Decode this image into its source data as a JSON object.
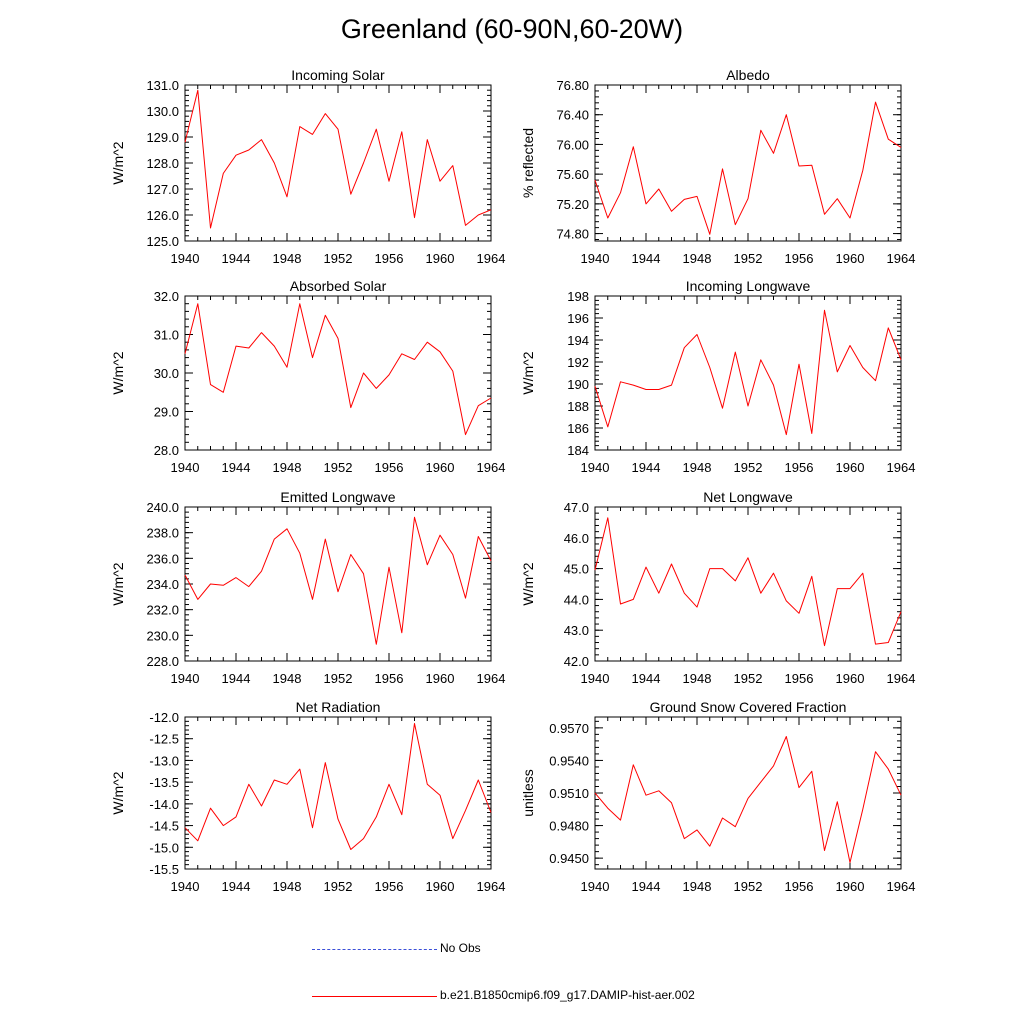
{
  "title": "Greenland (60-90N,60-20W)",
  "colors": {
    "model": "#ff0000",
    "obs": "#3b4fd8",
    "axis": "#000000"
  },
  "legend": {
    "obs_label": "No Obs",
    "model_label": "b.e21.B1850cmip6.f09_g17.DAMIP-hist-aer.002"
  },
  "chart_data": [
    {
      "type": "line",
      "title": "Incoming Solar",
      "xlabel": "",
      "ylabel": "W/m^2",
      "xlim": [
        1940,
        1964
      ],
      "ylim": [
        125.0,
        131.0
      ],
      "xticks": [
        "1940",
        "1944",
        "1948",
        "1952",
        "1956",
        "1960",
        "1964"
      ],
      "yticks": [
        "125.0",
        "126.0",
        "127.0",
        "128.0",
        "129.0",
        "130.0",
        "131.0"
      ],
      "x": [
        1940,
        1941,
        1942,
        1943,
        1944,
        1945,
        1946,
        1947,
        1948,
        1949,
        1950,
        1951,
        1952,
        1953,
        1954,
        1955,
        1956,
        1957,
        1958,
        1959,
        1960,
        1961,
        1962,
        1963,
        1964
      ],
      "series": [
        {
          "name": "b.e21.B1850cmip6.f09_g17.DAMIP-hist-aer.002",
          "values": [
            128.8,
            130.8,
            125.5,
            127.6,
            128.3,
            128.5,
            128.9,
            128.0,
            126.7,
            129.4,
            129.1,
            129.9,
            129.3,
            126.8,
            128.0,
            129.3,
            127.3,
            129.2,
            125.9,
            128.9,
            127.3,
            127.9,
            125.6,
            126.0,
            126.2
          ]
        }
      ]
    },
    {
      "type": "line",
      "title": "Albedo",
      "xlabel": "",
      "ylabel": "% reflected",
      "xlim": [
        1940,
        1964
      ],
      "ylim": [
        74.7,
        76.8
      ],
      "xticks": [
        "1940",
        "1944",
        "1948",
        "1952",
        "1956",
        "1960",
        "1964"
      ],
      "yticks": [
        "74.80",
        "75.20",
        "75.60",
        "76.00",
        "76.40",
        "76.80"
      ],
      "x": [
        1940,
        1941,
        1942,
        1943,
        1944,
        1945,
        1946,
        1947,
        1948,
        1949,
        1950,
        1951,
        1952,
        1953,
        1954,
        1955,
        1956,
        1957,
        1958,
        1959,
        1960,
        1961,
        1962,
        1963,
        1964
      ],
      "series": [
        {
          "name": "b.e21.B1850cmip6.f09_g17.DAMIP-hist-aer.002",
          "values": [
            75.52,
            75.01,
            75.35,
            75.97,
            75.2,
            75.4,
            75.1,
            75.26,
            75.3,
            74.79,
            75.67,
            74.92,
            75.27,
            76.19,
            75.88,
            76.4,
            75.71,
            75.72,
            75.06,
            75.27,
            75.01,
            75.65,
            76.57,
            76.07,
            75.96
          ]
        }
      ]
    },
    {
      "type": "line",
      "title": "Absorbed Solar",
      "xlabel": "",
      "ylabel": "W/m^2",
      "xlim": [
        1940,
        1964
      ],
      "ylim": [
        28.0,
        32.0
      ],
      "xticks": [
        "1940",
        "1944",
        "1948",
        "1952",
        "1956",
        "1960",
        "1964"
      ],
      "yticks": [
        "28.0",
        "29.0",
        "30.0",
        "31.0",
        "32.0"
      ],
      "x": [
        1940,
        1941,
        1942,
        1943,
        1944,
        1945,
        1946,
        1947,
        1948,
        1949,
        1950,
        1951,
        1952,
        1953,
        1954,
        1955,
        1956,
        1957,
        1958,
        1959,
        1960,
        1961,
        1962,
        1963,
        1964
      ],
      "series": [
        {
          "name": "b.e21.B1850cmip6.f09_g17.DAMIP-hist-aer.002",
          "values": [
            30.5,
            31.8,
            29.7,
            29.5,
            30.7,
            30.65,
            31.05,
            30.7,
            30.15,
            31.8,
            30.4,
            31.5,
            30.9,
            29.1,
            30.0,
            29.6,
            29.95,
            30.5,
            30.35,
            30.8,
            30.55,
            30.05,
            28.4,
            29.15,
            29.35
          ]
        }
      ]
    },
    {
      "type": "line",
      "title": "Incoming Longwave",
      "xlabel": "",
      "ylabel": "W/m^2",
      "xlim": [
        1940,
        1964
      ],
      "ylim": [
        184,
        198
      ],
      "xticks": [
        "1940",
        "1944",
        "1948",
        "1952",
        "1956",
        "1960",
        "1964"
      ],
      "yticks": [
        "184",
        "186",
        "188",
        "190",
        "192",
        "194",
        "196",
        "198"
      ],
      "x": [
        1940,
        1941,
        1942,
        1943,
        1944,
        1945,
        1946,
        1947,
        1948,
        1949,
        1950,
        1951,
        1952,
        1953,
        1954,
        1955,
        1956,
        1957,
        1958,
        1959,
        1960,
        1961,
        1962,
        1963,
        1964
      ],
      "series": [
        {
          "name": "b.e21.B1850cmip6.f09_g17.DAMIP-hist-aer.002",
          "values": [
            189.8,
            186.1,
            190.2,
            189.9,
            189.5,
            189.5,
            189.9,
            193.3,
            194.5,
            191.5,
            187.8,
            192.9,
            188.0,
            192.2,
            189.9,
            185.4,
            191.8,
            185.5,
            196.7,
            191.1,
            193.5,
            191.5,
            190.3,
            195.1,
            192.2
          ]
        }
      ]
    },
    {
      "type": "line",
      "title": "Emitted Longwave",
      "xlabel": "",
      "ylabel": "W/m^2",
      "xlim": [
        1940,
        1964
      ],
      "ylim": [
        228.0,
        240.0
      ],
      "xticks": [
        "1940",
        "1944",
        "1948",
        "1952",
        "1956",
        "1960",
        "1964"
      ],
      "yticks": [
        "228.0",
        "230.0",
        "232.0",
        "234.0",
        "236.0",
        "238.0",
        "240.0"
      ],
      "x": [
        1940,
        1941,
        1942,
        1943,
        1944,
        1945,
        1946,
        1947,
        1948,
        1949,
        1950,
        1951,
        1952,
        1953,
        1954,
        1955,
        1956,
        1957,
        1958,
        1959,
        1960,
        1961,
        1962,
        1963,
        1964
      ],
      "series": [
        {
          "name": "b.e21.B1850cmip6.f09_g17.DAMIP-hist-aer.002",
          "values": [
            234.7,
            232.8,
            234.0,
            233.9,
            234.5,
            233.8,
            235.0,
            237.5,
            238.3,
            236.4,
            232.8,
            237.5,
            233.4,
            236.3,
            234.8,
            229.3,
            235.3,
            230.2,
            239.2,
            235.5,
            237.8,
            236.3,
            232.9,
            237.7,
            235.8
          ]
        }
      ]
    },
    {
      "type": "line",
      "title": "Net Longwave",
      "xlabel": "",
      "ylabel": "W/m^2",
      "xlim": [
        1940,
        1964
      ],
      "ylim": [
        42.0,
        47.0
      ],
      "xticks": [
        "1940",
        "1944",
        "1948",
        "1952",
        "1956",
        "1960",
        "1964"
      ],
      "yticks": [
        "42.0",
        "43.0",
        "44.0",
        "45.0",
        "46.0",
        "47.0"
      ],
      "x": [
        1940,
        1941,
        1942,
        1943,
        1944,
        1945,
        1946,
        1947,
        1948,
        1949,
        1950,
        1951,
        1952,
        1953,
        1954,
        1955,
        1956,
        1957,
        1958,
        1959,
        1960,
        1961,
        1962,
        1963,
        1964
      ],
      "series": [
        {
          "name": "b.e21.B1850cmip6.f09_g17.DAMIP-hist-aer.002",
          "values": [
            44.95,
            46.65,
            43.85,
            44.0,
            45.05,
            44.2,
            45.15,
            44.2,
            43.75,
            45.0,
            45.0,
            44.6,
            45.35,
            44.2,
            44.85,
            43.95,
            43.55,
            44.75,
            42.5,
            44.35,
            44.35,
            44.85,
            42.55,
            42.6,
            43.6
          ]
        }
      ]
    },
    {
      "type": "line",
      "title": "Net Radiation",
      "xlabel": "",
      "ylabel": "W/m^2",
      "xlim": [
        1940,
        1964
      ],
      "ylim": [
        -15.5,
        -12.0
      ],
      "xticks": [
        "1940",
        "1944",
        "1948",
        "1952",
        "1956",
        "1960",
        "1964"
      ],
      "yticks": [
        "-15.5",
        "-15.0",
        "-14.5",
        "-14.0",
        "-13.5",
        "-13.0",
        "-12.5",
        "-12.0"
      ],
      "x": [
        1940,
        1941,
        1942,
        1943,
        1944,
        1945,
        1946,
        1947,
        1948,
        1949,
        1950,
        1951,
        1952,
        1953,
        1954,
        1955,
        1956,
        1957,
        1958,
        1959,
        1960,
        1961,
        1962,
        1963,
        1964
      ],
      "series": [
        {
          "name": "b.e21.B1850cmip6.f09_g17.DAMIP-hist-aer.002",
          "values": [
            -14.55,
            -14.85,
            -14.1,
            -14.5,
            -14.3,
            -13.55,
            -14.05,
            -13.45,
            -13.55,
            -13.2,
            -14.55,
            -13.05,
            -14.35,
            -15.05,
            -14.8,
            -14.3,
            -13.55,
            -14.25,
            -12.15,
            -13.55,
            -13.8,
            -14.8,
            -14.15,
            -13.45,
            -14.2
          ]
        }
      ]
    },
    {
      "type": "line",
      "title": "Ground Snow Covered Fraction",
      "xlabel": "",
      "ylabel": "unitless",
      "xlim": [
        1940,
        1964
      ],
      "ylim": [
        0.944,
        0.958
      ],
      "xticks": [
        "1940",
        "1944",
        "1948",
        "1952",
        "1956",
        "1960",
        "1964"
      ],
      "yticks": [
        "0.9450",
        "0.9480",
        "0.9510",
        "0.9540",
        "0.9570"
      ],
      "x": [
        1940,
        1941,
        1942,
        1943,
        1944,
        1945,
        1946,
        1947,
        1948,
        1949,
        1950,
        1951,
        1952,
        1953,
        1954,
        1955,
        1956,
        1957,
        1958,
        1959,
        1960,
        1961,
        1962,
        1963,
        1964
      ],
      "series": [
        {
          "name": "b.e21.B1850cmip6.f09_g17.DAMIP-hist-aer.002",
          "values": [
            0.951,
            0.9496,
            0.9485,
            0.9536,
            0.9508,
            0.9512,
            0.9501,
            0.9468,
            0.9476,
            0.9461,
            0.9487,
            0.9479,
            0.9505,
            0.952,
            0.9535,
            0.9562,
            0.9515,
            0.953,
            0.9457,
            0.9502,
            0.9446,
            0.9495,
            0.9548,
            0.9532,
            0.9508
          ]
        }
      ]
    }
  ]
}
